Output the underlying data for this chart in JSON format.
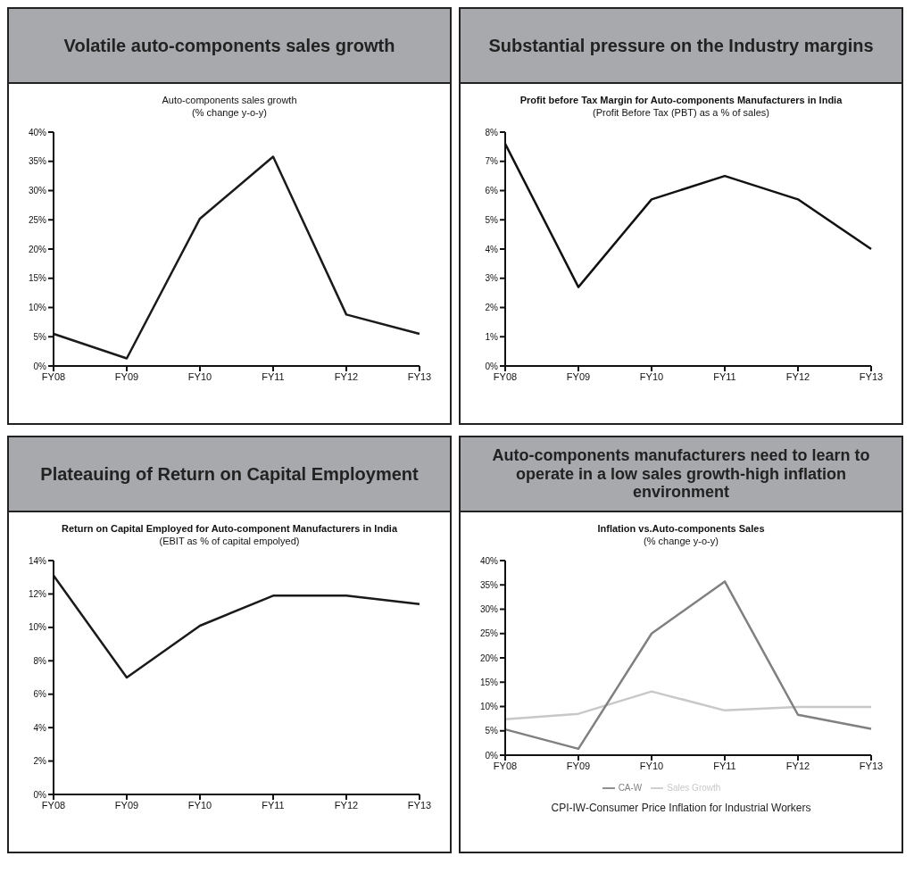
{
  "chart_data": [
    {
      "type": "line",
      "title": "Volatile auto-components sales growth",
      "subtitle": "Auto-components sales growth\n(% change y-o-y)",
      "categories": [
        "FY08",
        "FY09",
        "FY10",
        "FY11",
        "FY12",
        "FY13"
      ],
      "series": [
        {
          "color": "#1a1a1a",
          "values": [
            5.5,
            1.3,
            25.2,
            35.8,
            8.8,
            5.5
          ]
        }
      ],
      "ylim": [
        0,
        40
      ],
      "yticks": [
        {
          "value": 0,
          "label": "0%"
        },
        {
          "value": 5,
          "label": "5%"
        },
        {
          "value": 10,
          "label": "10%"
        },
        {
          "value": 15,
          "label": "15%"
        },
        {
          "value": 20,
          "label": "20%"
        },
        {
          "value": 25,
          "label": "25%"
        },
        {
          "value": 30,
          "label": "30%"
        },
        {
          "value": 35,
          "label": "35%"
        },
        {
          "value": 40,
          "label": "40%"
        }
      ],
      "grid": false,
      "legend": false
    },
    {
      "type": "line",
      "title": "Substantial pressure on the Industry margins",
      "subtitle": "Profit before Tax Margin for Auto-components Manufacturers in India\n(Profit Before Tax (PBT) as a % of sales)",
      "categories": [
        "FY08",
        "FY09",
        "FY10",
        "FY11",
        "FY12",
        "FY13"
      ],
      "series": [
        {
          "color": "#111111",
          "values": [
            7.6,
            2.7,
            5.7,
            6.5,
            5.7,
            4.0
          ]
        }
      ],
      "ylim": [
        0,
        8
      ],
      "yticks": [
        {
          "value": 0,
          "label": "0%"
        },
        {
          "value": 1,
          "label": "1%"
        },
        {
          "value": 2,
          "label": "2%"
        },
        {
          "value": 3,
          "label": "3%"
        },
        {
          "value": 4,
          "label": "4%"
        },
        {
          "value": 5,
          "label": "5%"
        },
        {
          "value": 6,
          "label": "6%"
        },
        {
          "value": 7,
          "label": "7%"
        },
        {
          "value": 8,
          "label": "8%"
        }
      ],
      "grid": false,
      "legend": false
    },
    {
      "type": "line",
      "title": "Plateauing of Return on Capital Employment",
      "subtitle": "Return on Capital Employed for Auto-component Manufacturers in India\n(EBIT as % of capital empolyed)",
      "categories": [
        "FY08",
        "FY09",
        "FY10",
        "FY11",
        "FY12",
        "FY13"
      ],
      "series": [
        {
          "color": "#1a1a1a",
          "values": [
            13.1,
            7.0,
            10.1,
            11.9,
            11.9,
            11.4
          ]
        }
      ],
      "ylim": [
        0,
        14
      ],
      "yticks": [
        {
          "value": 0,
          "label": "0%"
        },
        {
          "value": 2,
          "label": "2%"
        },
        {
          "value": 4,
          "label": "4%"
        },
        {
          "value": 6,
          "label": "6%"
        },
        {
          "value": 8,
          "label": "8%"
        },
        {
          "value": 10,
          "label": "10%"
        },
        {
          "value": 12,
          "label": "12%"
        },
        {
          "value": 14,
          "label": "14%"
        }
      ],
      "grid": false,
      "legend": false
    },
    {
      "type": "line",
      "title": "Auto-components manufacturers need to learn to operate in a low sales growth-high inflation environment",
      "subtitle": "Inflation vs.Auto-components Sales\n(% change y-o-y)",
      "categories": [
        "FY08",
        "FY09",
        "FY10",
        "FY11",
        "FY12",
        "FY13"
      ],
      "series": [
        {
          "name": "Sales Growth",
          "color": "#c8c8c8",
          "values": [
            7.4,
            8.5,
            13.1,
            9.2,
            9.9,
            9.9
          ]
        },
        {
          "name": "CA-W",
          "color": "#808080",
          "values": [
            5.3,
            1.3,
            25.0,
            35.7,
            8.3,
            5.4
          ]
        }
      ],
      "ylim": [
        0,
        40
      ],
      "yticks": [
        {
          "value": 0,
          "label": "0%"
        },
        {
          "value": 5,
          "label": "5%"
        },
        {
          "value": 10,
          "label": "10%"
        },
        {
          "value": 15,
          "label": "15%"
        },
        {
          "value": 20,
          "label": "20%"
        },
        {
          "value": 25,
          "label": "25%"
        },
        {
          "value": 30,
          "label": "30%"
        },
        {
          "value": 35,
          "label": "35%"
        },
        {
          "value": 40,
          "label": "40%"
        }
      ],
      "grid": false,
      "legend": "bottom",
      "annotations": [
        "CPI-IW-Consumer Price Inflation for Industrial Workers"
      ]
    }
  ]
}
